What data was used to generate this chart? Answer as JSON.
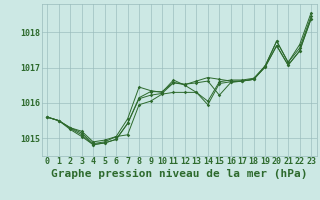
{
  "title": "",
  "xlabel": "Graphe pression niveau de la mer (hPa)",
  "ylabel": "",
  "background_color": "#cce8e4",
  "plot_bg_color": "#cce8e4",
  "grid_color": "#99bbbb",
  "line_color": "#2d6a2d",
  "marker_color": "#2d6a2d",
  "xlim": [
    -0.5,
    23.5
  ],
  "ylim": [
    1014.5,
    1018.8
  ],
  "yticks": [
    1015,
    1016,
    1017,
    1018
  ],
  "xticks": [
    0,
    1,
    2,
    3,
    4,
    5,
    6,
    7,
    8,
    9,
    10,
    11,
    12,
    13,
    14,
    15,
    16,
    17,
    18,
    19,
    20,
    21,
    22,
    23
  ],
  "series": [
    [
      1015.6,
      1015.5,
      1015.3,
      1015.2,
      1014.9,
      1014.95,
      1015.05,
      1015.1,
      1015.95,
      1016.05,
      1016.25,
      1016.3,
      1016.3,
      1016.3,
      1016.05,
      1016.6,
      1016.65,
      1016.65,
      1016.7,
      1017.05,
      1017.75,
      1017.15,
      1017.65,
      1018.55
    ],
    [
      1015.6,
      1015.5,
      1015.3,
      1015.15,
      1014.85,
      1014.9,
      1015.05,
      1015.55,
      1016.45,
      1016.35,
      1016.3,
      1016.65,
      1016.5,
      1016.3,
      1015.95,
      1016.55,
      1016.6,
      1016.62,
      1016.67,
      1017.05,
      1017.75,
      1017.15,
      1017.55,
      1018.45
    ],
    [
      1015.6,
      1015.5,
      1015.28,
      1015.1,
      1014.82,
      1014.87,
      1014.97,
      1015.42,
      1016.15,
      1016.32,
      1016.32,
      1016.58,
      1016.53,
      1016.57,
      1016.62,
      1016.22,
      1016.58,
      1016.62,
      1016.67,
      1017.02,
      1017.62,
      1017.07,
      1017.47,
      1018.38
    ],
    [
      1015.6,
      1015.5,
      1015.25,
      1015.05,
      1014.82,
      1014.87,
      1014.97,
      1015.42,
      1016.12,
      1016.22,
      1016.27,
      1016.57,
      1016.52,
      1016.62,
      1016.72,
      1016.67,
      1016.62,
      1016.62,
      1016.67,
      1017.02,
      1017.62,
      1017.07,
      1017.47,
      1018.38
    ]
  ],
  "figsize": [
    3.2,
    2.0
  ],
  "dpi": 100,
  "xlabel_fontsize": 8,
  "tick_fontsize": 6,
  "label_color": "#2d6a2d",
  "outer_bg": "#cce8e4"
}
